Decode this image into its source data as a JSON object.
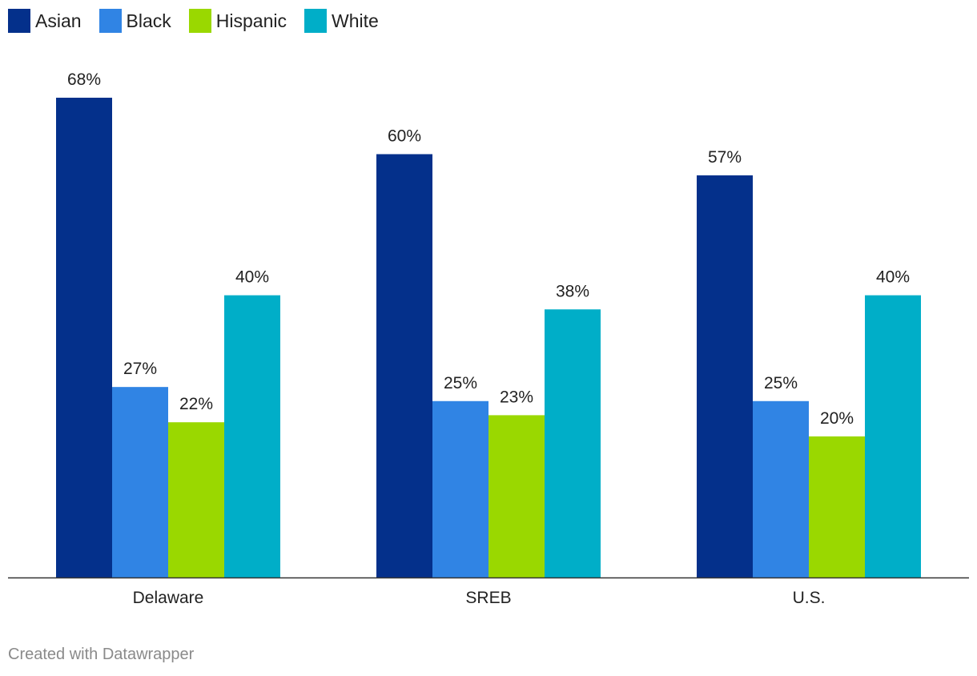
{
  "chart_data": {
    "type": "bar",
    "title": "",
    "xlabel": "",
    "ylabel": "",
    "ylim": [
      0,
      68
    ],
    "value_suffix": "%",
    "categories": [
      "Delaware",
      "SREB",
      "U.S."
    ],
    "series": [
      {
        "name": "Asian",
        "color": "#04308b",
        "values": [
          68,
          60,
          57
        ]
      },
      {
        "name": "Black",
        "color": "#3084e4",
        "values": [
          27,
          25,
          25
        ]
      },
      {
        "name": "Hispanic",
        "color": "#9ad800",
        "values": [
          22,
          23,
          20
        ]
      },
      {
        "name": "White",
        "color": "#00aec8",
        "values": [
          40,
          38,
          40
        ]
      }
    ],
    "grid": false,
    "legend_position": "top-left"
  },
  "legend": {
    "items": [
      {
        "label": "Asian",
        "color": "#04308b"
      },
      {
        "label": "Black",
        "color": "#3084e4"
      },
      {
        "label": "Hispanic",
        "color": "#9ad800"
      },
      {
        "label": "White",
        "color": "#00aec8"
      }
    ]
  },
  "footer": {
    "credit": "Created with Datawrapper"
  }
}
